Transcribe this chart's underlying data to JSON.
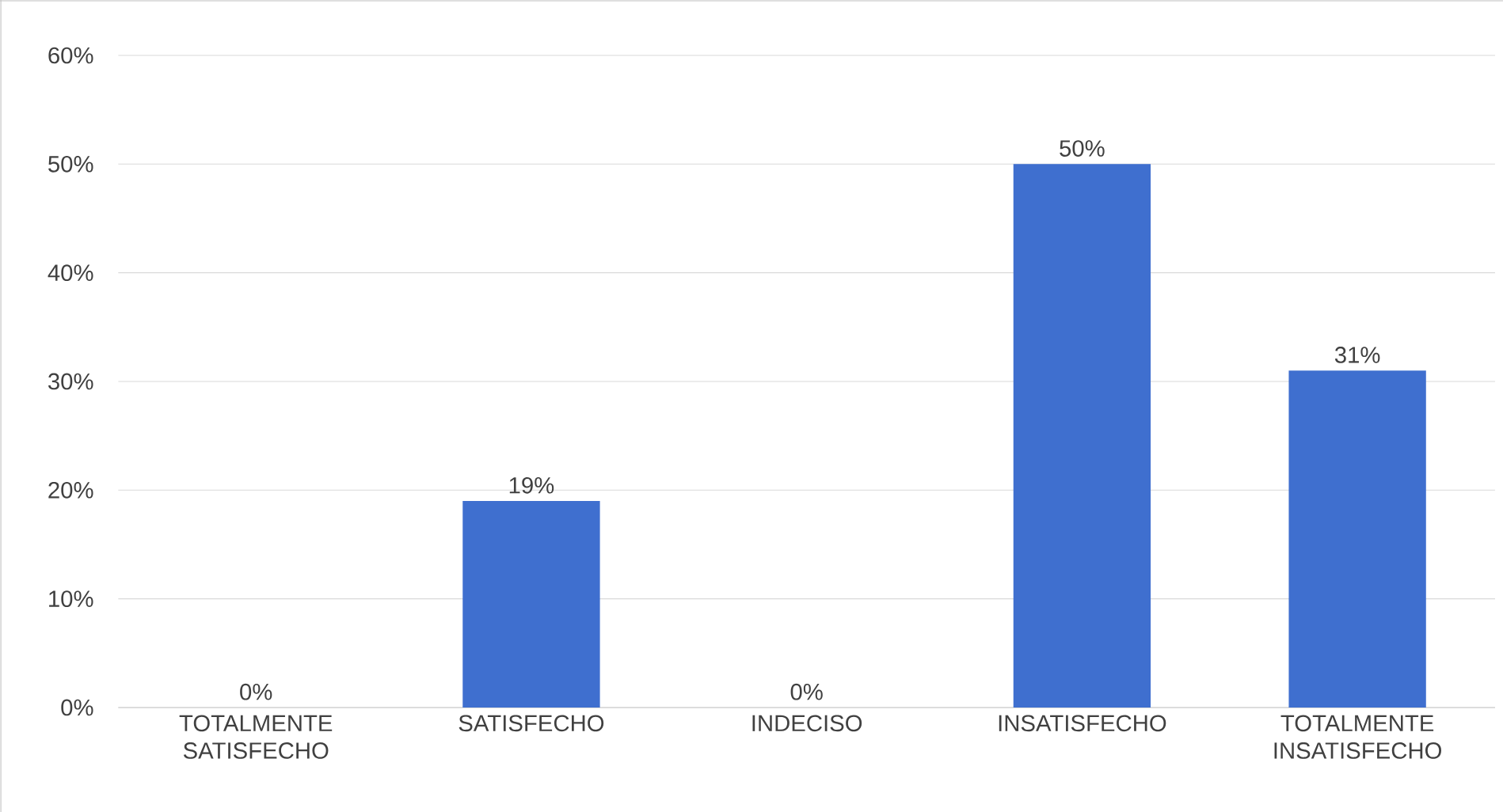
{
  "chart_data": {
    "type": "bar",
    "categories": [
      "TOTALMENTE SATISFECHO",
      "SATISFECHO",
      "INDECISO",
      "INSATISFECHO",
      "TOTALMENTE INSATISFECHO"
    ],
    "values": [
      0,
      19,
      0,
      50,
      31
    ],
    "value_labels": [
      "0%",
      "19%",
      "0%",
      "50%",
      "31%"
    ],
    "color": "#3f6fcf",
    "ylim": [
      0,
      60
    ],
    "yticks": [
      {
        "value": 0,
        "label": "0%"
      },
      {
        "value": 10,
        "label": "10%"
      },
      {
        "value": 20,
        "label": "20%"
      },
      {
        "value": 30,
        "label": "30%"
      },
      {
        "value": 40,
        "label": "40%"
      },
      {
        "value": 50,
        "label": "50%"
      },
      {
        "value": 60,
        "label": "60%"
      }
    ],
    "grid": "y"
  }
}
